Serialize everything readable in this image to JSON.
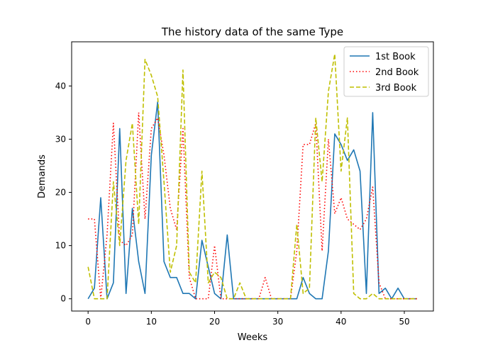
{
  "chart_data": {
    "type": "line",
    "title": "The history data of the same Type",
    "xlabel": "Weeks",
    "ylabel": "Demands",
    "xlim": [
      -2.6,
      54.6
    ],
    "ylim": [
      -2.3,
      48.3
    ],
    "xticks": [
      0,
      10,
      20,
      30,
      40,
      50
    ],
    "yticks": [
      0,
      10,
      20,
      30,
      40
    ],
    "grid": false,
    "legend_position": "top-right",
    "x": [
      0,
      1,
      2,
      3,
      4,
      5,
      6,
      7,
      8,
      9,
      10,
      11,
      12,
      13,
      14,
      15,
      16,
      17,
      18,
      19,
      20,
      21,
      22,
      23,
      24,
      25,
      26,
      27,
      28,
      29,
      30,
      31,
      32,
      33,
      34,
      35,
      36,
      37,
      38,
      39,
      40,
      41,
      42,
      43,
      44,
      45,
      46,
      47,
      48,
      49,
      50,
      51,
      52
    ],
    "series": [
      {
        "name": "1st Book",
        "color": "#1f77b4",
        "style": "solid",
        "values": [
          0,
          2,
          19,
          0,
          3,
          32,
          1,
          17,
          7,
          1,
          27,
          37,
          7,
          4,
          4,
          1,
          1,
          0,
          11,
          6,
          1,
          0,
          12,
          0,
          0,
          0,
          0,
          0,
          0,
          0,
          0,
          0,
          0,
          0,
          4,
          1,
          0,
          0,
          9,
          31,
          29,
          26,
          28,
          24,
          1,
          35,
          1,
          2,
          0,
          2,
          0,
          0,
          0
        ]
      },
      {
        "name": "2nd Book",
        "color": "#ff0000",
        "style": "dotted",
        "values": [
          15,
          15,
          0,
          12,
          33,
          11,
          10,
          12,
          35,
          15,
          32,
          34,
          27,
          17,
          13,
          32,
          4,
          0,
          0,
          0,
          10,
          0,
          0,
          0,
          0,
          0,
          0,
          0,
          4,
          0,
          0,
          0,
          0,
          9,
          29,
          29,
          33,
          9,
          30,
          16,
          19,
          15,
          14,
          13,
          15,
          21,
          3,
          0,
          0,
          0,
          0,
          0,
          0
        ]
      },
      {
        "name": "3rd Book",
        "color": "#bfbf00",
        "style": "dashed",
        "values": [
          6,
          0,
          0,
          0,
          22,
          10,
          26,
          33,
          14,
          45,
          42,
          38,
          22,
          5,
          10,
          43,
          5,
          3,
          24,
          3,
          5,
          4,
          0,
          0,
          3,
          0,
          0,
          0,
          0,
          0,
          0,
          0,
          0,
          14,
          1,
          2,
          34,
          22,
          39,
          46,
          24,
          34,
          1,
          0,
          0,
          1,
          0,
          0,
          0,
          0,
          0,
          0,
          0
        ]
      }
    ]
  }
}
